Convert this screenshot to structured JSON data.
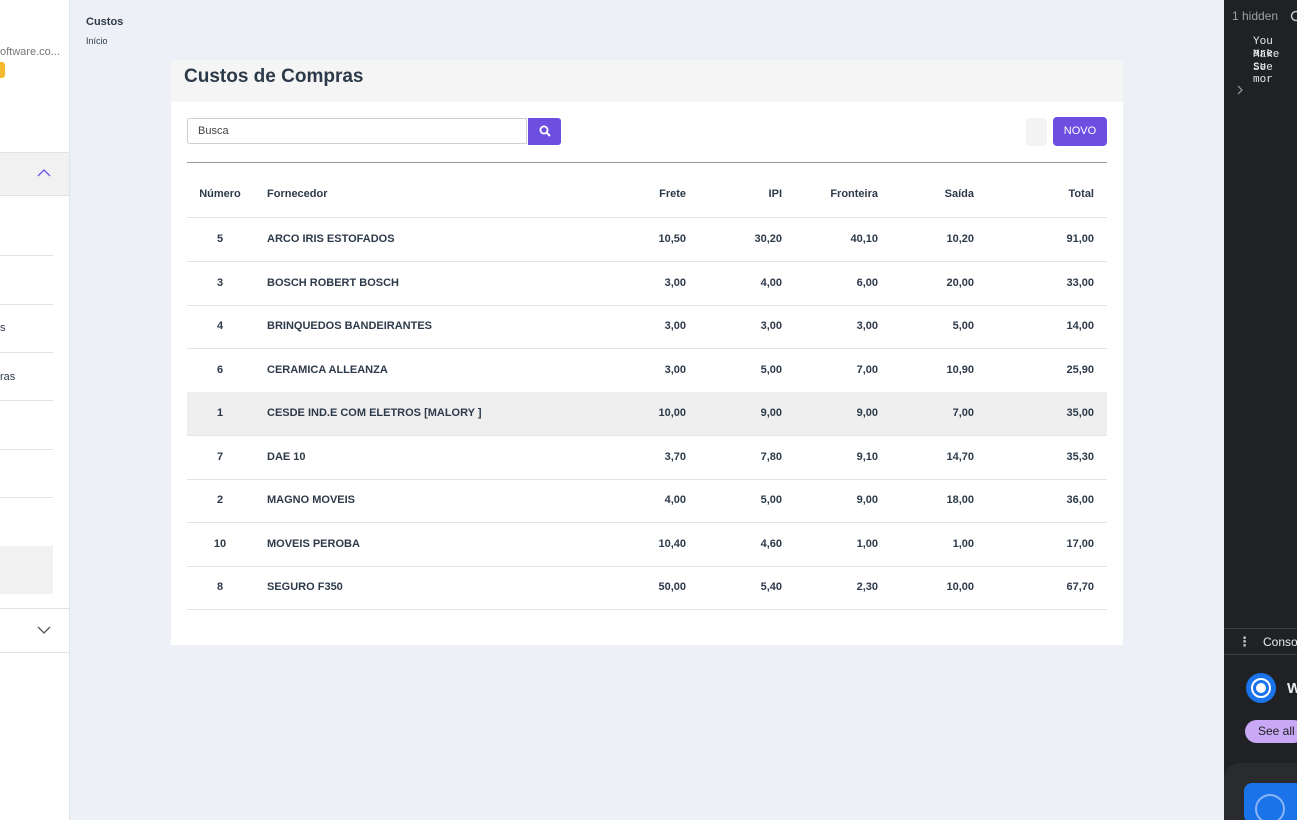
{
  "sidebar": {
    "brand_text": "oftware.co...",
    "items": [
      "s",
      "ras"
    ]
  },
  "breadcrumb": {
    "title": "Custos",
    "link": "Início"
  },
  "card": {
    "title": "Custos de Compras",
    "search_placeholder": "Busca",
    "new_button": "NOVO"
  },
  "table": {
    "headers": [
      "Número",
      "Fornecedor",
      "Frete",
      "IPI",
      "Fronteira",
      "Saída",
      "Total"
    ],
    "rows": [
      [
        "5",
        "ARCO IRIS ESTOFADOS",
        "10,50",
        "30,20",
        "40,10",
        "10,20",
        "91,00"
      ],
      [
        "3",
        "BOSCH ROBERT BOSCH",
        "3,00",
        "4,00",
        "6,00",
        "20,00",
        "33,00"
      ],
      [
        "4",
        "BRINQUEDOS BANDEIRANTES",
        "3,00",
        "3,00",
        "3,00",
        "5,00",
        "14,00"
      ],
      [
        "6",
        "CERAMICA ALLEANZA",
        "3,00",
        "5,00",
        "7,00",
        "10,90",
        "25,90"
      ],
      [
        "1",
        "CESDE IND.E COM ELETROS [MALORY ]",
        "10,00",
        "9,00",
        "9,00",
        "7,00",
        "35,00"
      ],
      [
        "7",
        "DAE 10",
        "3,70",
        "7,80",
        "9,10",
        "14,70",
        "35,30"
      ],
      [
        "2",
        "MAGNO MOVEIS",
        "4,00",
        "5,00",
        "9,00",
        "18,00",
        "36,00"
      ],
      [
        "10",
        "MOVEIS PEROBA",
        "10,40",
        "4,60",
        "1,00",
        "1,00",
        "17,00"
      ],
      [
        "8",
        "SEGURO F350",
        "50,00",
        "5,40",
        "2,30",
        "10,00",
        "67,70"
      ]
    ]
  },
  "devtools": {
    "hidden_count": "1 hidden",
    "console_lines": [
      "You are",
      "Make su",
      "See mor"
    ],
    "drawer_tab": "Conso",
    "promo_heading": "W",
    "promo_button": "See all"
  }
}
